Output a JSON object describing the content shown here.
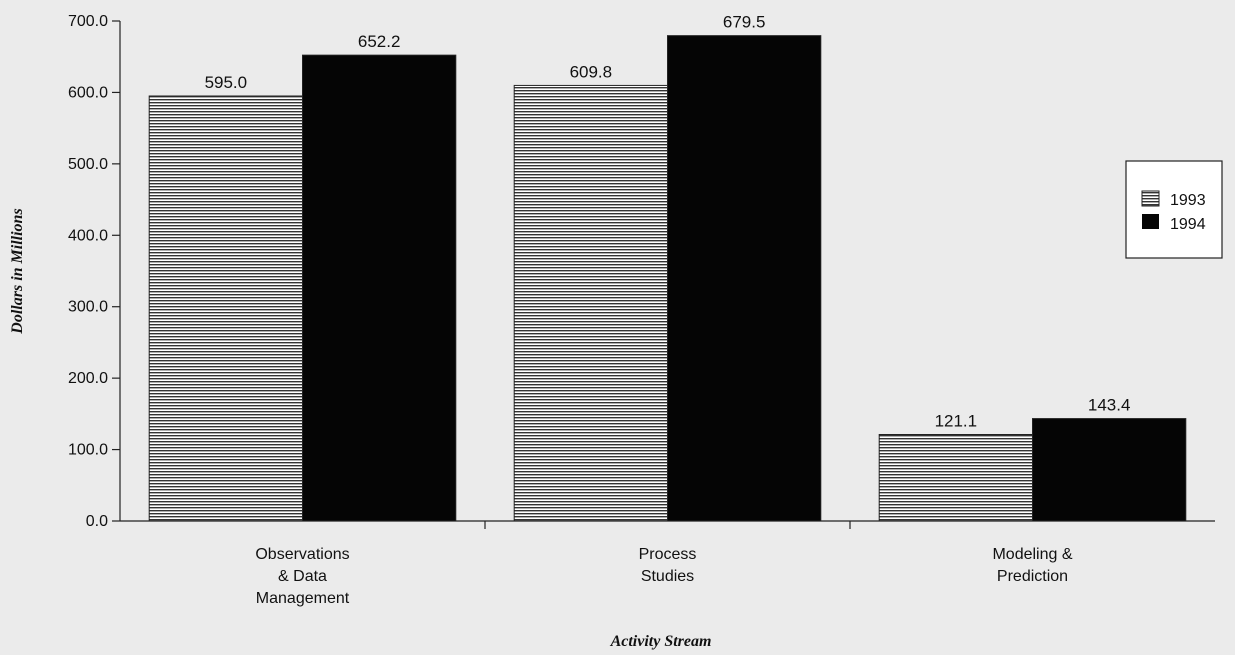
{
  "chart_data": {
    "type": "bar",
    "categories": [
      "Observations\n& Data\nManagement",
      "Process\nStudies",
      "Modeling &\nPrediction"
    ],
    "series": [
      {
        "name": "1993",
        "values": [
          595.0,
          609.8,
          121.1
        ],
        "color": "#ffffff",
        "pattern": "horizontal-stripes"
      },
      {
        "name": "1994",
        "values": [
          652.2,
          679.5,
          143.4
        ],
        "color": "#050505",
        "pattern": "solid"
      }
    ],
    "data_labels": [
      [
        "595.0",
        "609.8",
        "121.1"
      ],
      [
        "652.2",
        "679.5",
        "143.4"
      ]
    ],
    "y_ticks": [
      "0.0",
      "100.0",
      "200.0",
      "300.0",
      "400.0",
      "500.0",
      "600.0",
      "700.0"
    ],
    "ylim": [
      0,
      700
    ],
    "xlabel": "Activity Stream",
    "ylabel": "Dollars in Millions",
    "grid": false,
    "legend_position": "right",
    "colors": {
      "background": "#ebebeb",
      "stripe": "#333333"
    }
  }
}
